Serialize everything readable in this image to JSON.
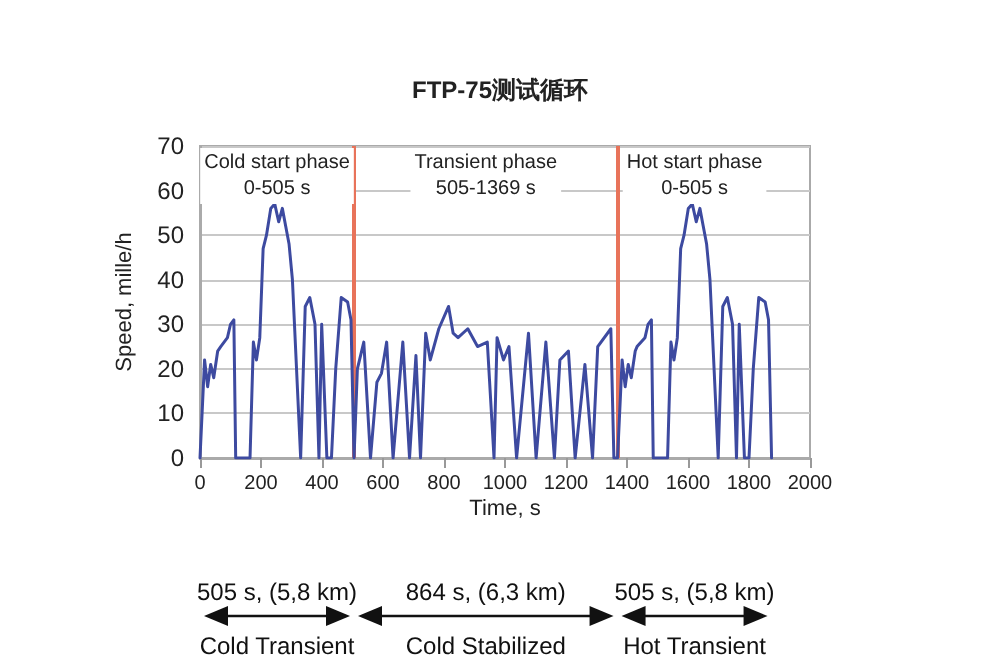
{
  "chart_data": {
    "type": "line",
    "title": "FTP-75测试循环",
    "xlabel": "Time, s",
    "ylabel": "Speed, mille/h",
    "x": [
      0,
      15,
      25,
      35,
      45,
      58,
      68,
      90,
      100,
      111,
      117,
      125,
      164,
      175,
      185,
      196,
      207,
      218,
      232,
      245,
      258,
      270,
      281,
      292,
      303,
      330,
      345,
      360,
      377,
      390,
      399,
      416,
      431,
      445,
      463,
      484,
      495,
      505,
      516,
      537,
      559,
      580,
      595,
      612,
      633,
      665,
      687,
      708,
      723,
      740,
      755,
      783,
      815,
      830,
      846,
      878,
      910,
      942,
      964,
      974,
      995,
      1013,
      1038,
      1077,
      1102,
      1134,
      1162,
      1180,
      1208,
      1230,
      1262,
      1287,
      1304,
      1347,
      1357,
      1369,
      1384,
      1394,
      1404,
      1414,
      1427,
      1433,
      1459,
      1469,
      1480,
      1486,
      1494,
      1533,
      1544,
      1554,
      1565,
      1576,
      1587,
      1601,
      1614,
      1627,
      1639,
      1650,
      1661,
      1672,
      1699,
      1714,
      1729,
      1746,
      1759,
      1768,
      1785,
      1800,
      1814,
      1832,
      1853,
      1864,
      1874
    ],
    "series": [
      {
        "color": "#3d4aa0",
        "values": [
          0,
          22,
          16,
          21,
          18,
          24,
          25,
          27,
          30,
          31,
          0,
          0,
          0,
          26,
          22,
          27,
          47,
          50,
          56,
          57,
          53,
          56,
          52,
          48,
          40,
          0,
          34,
          36,
          30,
          0,
          30,
          0,
          0,
          20,
          36,
          35,
          31,
          0,
          20,
          26,
          0,
          17,
          19,
          26,
          0,
          26,
          0,
          23,
          0,
          28,
          22,
          29,
          34,
          28,
          27,
          29,
          25,
          26,
          0,
          27,
          22,
          25,
          0,
          28,
          0,
          26,
          0,
          22,
          24,
          0,
          21,
          0,
          25,
          29,
          0,
          0,
          22,
          16,
          21,
          18,
          24,
          25,
          27,
          30,
          31,
          0,
          0,
          0,
          26,
          22,
          27,
          47,
          50,
          56,
          57,
          53,
          56,
          52,
          48,
          40,
          0,
          34,
          36,
          30,
          0,
          30,
          0,
          0,
          20,
          36,
          35,
          31,
          0
        ]
      }
    ],
    "xlim": [
      0,
      2000
    ],
    "xticks": [
      0,
      200,
      400,
      600,
      800,
      1000,
      1200,
      1400,
      1600,
      1800,
      2000
    ],
    "ylim": [
      0,
      70
    ],
    "yticks": [
      0,
      10,
      20,
      30,
      40,
      50,
      60,
      70
    ],
    "grid": "y",
    "marker": "none",
    "line_style": "solid",
    "ref_lines": [
      {
        "axis": "x",
        "value": 505,
        "color": "#e8735a"
      },
      {
        "axis": "x",
        "value": 1369,
        "color": "#e8735a"
      }
    ],
    "annotations": [
      "Cold start phase\n0-505 s",
      "Transient phase\n505-1369 s",
      "Hot start phase\n0-505 s",
      "505 s, (5,8 km)",
      "864 s, (6,3 km)",
      "505 s, (5,8 km)",
      "Cold Transient",
      "Cold Stabilized",
      "Hot Transient"
    ]
  }
}
